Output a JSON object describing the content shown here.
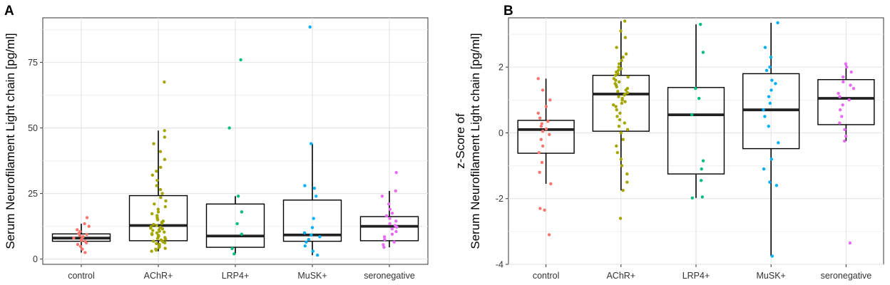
{
  "chart_data": [
    {
      "type": "box",
      "panel": "A",
      "ylabel": "Serum Neurofilament Light chain [pg/ml]",
      "xlabel": "",
      "categories": [
        "control",
        "AChR+",
        "LRP4+",
        "MuSK+",
        "seronegative"
      ],
      "ylim": [
        -2,
        92
      ],
      "yticks": [
        0,
        25,
        50,
        75
      ],
      "grid": true,
      "colors": [
        "#f8766d",
        "#a3a500",
        "#00bf7d",
        "#00b0f6",
        "#e76bf3"
      ],
      "boxes": [
        {
          "q1": 6.8,
          "median": 8.0,
          "q3": 9.6,
          "whisker_low": 2.5,
          "whisker_high": 13.5
        },
        {
          "q1": 7.0,
          "median": 12.8,
          "q3": 24.2,
          "whisker_low": 3.0,
          "whisker_high": 49.0
        },
        {
          "q1": 4.5,
          "median": 8.8,
          "q3": 21.0,
          "whisker_low": 2.0,
          "whisker_high": 24.0
        },
        {
          "q1": 6.8,
          "median": 9.2,
          "q3": 22.5,
          "whisker_low": 1.5,
          "whisker_high": 44.0
        },
        {
          "q1": 7.0,
          "median": 12.5,
          "q3": 16.2,
          "whisker_low": 4.5,
          "whisker_high": 26.0
        }
      ],
      "points": [
        [
          2.5,
          3.8,
          4.8,
          5.6,
          6.2,
          6.8,
          7.1,
          7.4,
          7.7,
          8.0,
          8.3,
          8.6,
          9.0,
          9.4,
          9.8,
          10.5,
          11.2,
          12.5,
          13.5,
          15.8
        ],
        [
          3.0,
          3.4,
          3.8,
          4.1,
          4.4,
          4.7,
          5.0,
          5.3,
          5.6,
          5.9,
          6.2,
          6.5,
          6.8,
          7.0,
          7.3,
          7.6,
          7.9,
          8.2,
          8.5,
          8.8,
          9.1,
          9.4,
          9.7,
          10.0,
          10.3,
          10.6,
          10.9,
          11.2,
          11.5,
          11.8,
          12.1,
          12.4,
          12.8,
          13.2,
          13.6,
          14.0,
          14.5,
          15.0,
          15.5,
          16.0,
          16.6,
          17.3,
          18.0,
          19.0,
          20.0,
          21.0,
          22.2,
          23.5,
          25.0,
          26.5,
          28.0,
          30.0,
          32.0,
          33.5,
          35.0,
          38.0,
          41.0,
          44.0,
          46.5,
          49.0,
          67.5
        ],
        [
          2.0,
          4.0,
          9.5,
          13.5,
          18.0,
          24.0,
          50.0,
          76.0
        ],
        [
          1.5,
          3.0,
          5.0,
          6.5,
          7.5,
          8.5,
          9.2,
          10.0,
          12.0,
          15.5,
          24.0,
          27.0,
          28.0,
          44.0,
          88.5
        ],
        [
          4.5,
          5.5,
          6.5,
          7.5,
          8.5,
          9.5,
          10.5,
          11.5,
          12.2,
          12.8,
          13.5,
          14.5,
          15.5,
          16.5,
          17.5,
          19.0,
          21.0,
          24.0,
          26.0,
          33.0
        ]
      ]
    },
    {
      "type": "box",
      "panel": "B",
      "ylabel": "z-Score of\nSerum Neurofilament Light chain [pg/ml]",
      "xlabel": "",
      "categories": [
        "control",
        "AChR+",
        "LRP4+",
        "MuSK+",
        "seronegative"
      ],
      "ylim": [
        -4.0,
        3.5
      ],
      "yticks": [
        -4,
        -2,
        0,
        2
      ],
      "grid": true,
      "colors": [
        "#f8766d",
        "#a3a500",
        "#00bf7d",
        "#00b0f6",
        "#e76bf3"
      ],
      "boxes": [
        {
          "q1": -0.62,
          "median": 0.1,
          "q3": 0.38,
          "whisker_low": -1.55,
          "whisker_high": 1.65
        },
        {
          "q1": 0.05,
          "median": 1.18,
          "q3": 1.75,
          "whisker_low": -1.75,
          "whisker_high": 3.4
        },
        {
          "q1": -1.25,
          "median": 0.55,
          "q3": 1.38,
          "whisker_low": -1.98,
          "whisker_high": 3.3
        },
        {
          "q1": -0.48,
          "median": 0.7,
          "q3": 1.8,
          "whisker_low": -3.75,
          "whisker_high": 3.35
        },
        {
          "q1": 0.25,
          "median": 1.05,
          "q3": 1.62,
          "whisker_low": -0.25,
          "whisker_high": 2.1
        }
      ],
      "points": [
        [
          -3.1,
          -2.35,
          -2.3,
          -1.55,
          -1.2,
          -0.9,
          -0.6,
          -0.4,
          -0.2,
          -0.05,
          0.05,
          0.12,
          0.2,
          0.28,
          0.35,
          0.45,
          0.6,
          0.8,
          1.0,
          1.3,
          1.65
        ],
        [
          -2.6,
          -1.75,
          -1.5,
          -1.25,
          -1.0,
          -0.8,
          -0.6,
          -0.4,
          -0.2,
          0.0,
          0.1,
          0.2,
          0.3,
          0.4,
          0.5,
          0.6,
          0.7,
          0.8,
          0.85,
          0.9,
          0.95,
          1.0,
          1.05,
          1.1,
          1.15,
          1.18,
          1.22,
          1.26,
          1.3,
          1.35,
          1.4,
          1.45,
          1.5,
          1.55,
          1.6,
          1.65,
          1.7,
          1.75,
          1.8,
          1.85,
          1.9,
          1.95,
          2.0,
          2.1,
          2.2,
          2.3,
          2.4,
          2.6,
          2.9,
          3.1,
          3.4
        ],
        [
          -1.98,
          -1.95,
          -1.45,
          -1.1,
          -0.85,
          0.55,
          1.05,
          1.35,
          2.45,
          3.3
        ],
        [
          -3.75,
          -1.6,
          -1.5,
          -1.1,
          -0.8,
          -0.3,
          0.2,
          0.5,
          0.7,
          0.9,
          1.1,
          1.3,
          1.5,
          1.6,
          1.9,
          2.0,
          2.3,
          2.6,
          3.35
        ],
        [
          -3.35,
          -0.25,
          -0.1,
          0.1,
          0.3,
          0.5,
          0.7,
          0.85,
          1.0,
          1.1,
          1.2,
          1.35,
          1.45,
          1.55,
          1.7,
          1.85,
          2.0,
          2.1
        ]
      ]
    }
  ]
}
